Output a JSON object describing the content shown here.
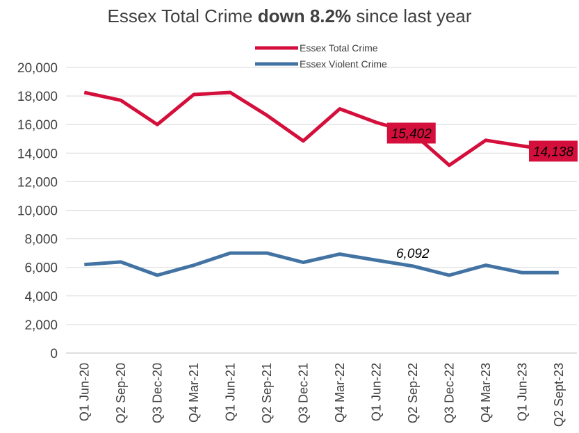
{
  "title": {
    "prefix": "Essex Total Crime ",
    "bold": "down 8.2%",
    "suffix": " since last year"
  },
  "chart_data": {
    "type": "line",
    "categories": [
      "Q1 Jun-20",
      "Q2 Sep-20",
      "Q3 Dec-20",
      "Q4 Mar-21",
      "Q1 Jun-21",
      "Q2 Sep-21",
      "Q3 Dec-21",
      "Q4 Mar-22",
      "Q1 Jun-22",
      "Q2 Sep-22",
      "Q3 Dec-22",
      "Q4 Mar-23",
      "Q1 Jun-23",
      "Q2 Sept-23"
    ],
    "series": [
      {
        "name": "Essex Total Crime",
        "color": "#d40f3c",
        "values": [
          18250,
          17700,
          16000,
          18100,
          18250,
          16650,
          14850,
          17100,
          16150,
          15402,
          13150,
          14900,
          14500,
          14138
        ]
      },
      {
        "name": "Essex Violent Crime",
        "color": "#4273a3",
        "values": [
          6200,
          6380,
          5450,
          6150,
          7000,
          7000,
          6350,
          6930,
          6500,
          6092,
          5450,
          6150,
          5630,
          5630
        ]
      }
    ],
    "data_labels": [
      {
        "series": 0,
        "index": 9,
        "text": "15,402",
        "boxed": true
      },
      {
        "series": 0,
        "index": 13,
        "text": "14,138",
        "boxed": true
      },
      {
        "series": 1,
        "index": 9,
        "text": "6,092",
        "boxed": false
      }
    ],
    "yticks": [
      "0",
      "2,000",
      "4,000",
      "6,000",
      "8,000",
      "10,000",
      "12,000",
      "14,000",
      "16,000",
      "18,000",
      "20,000"
    ],
    "ylim": [
      0,
      20000
    ],
    "legend_position": "top",
    "grid": true,
    "colors": {
      "grid": "#d9d9d9",
      "axis": "#bfbfbf",
      "label_box": "#d40f3c"
    }
  }
}
